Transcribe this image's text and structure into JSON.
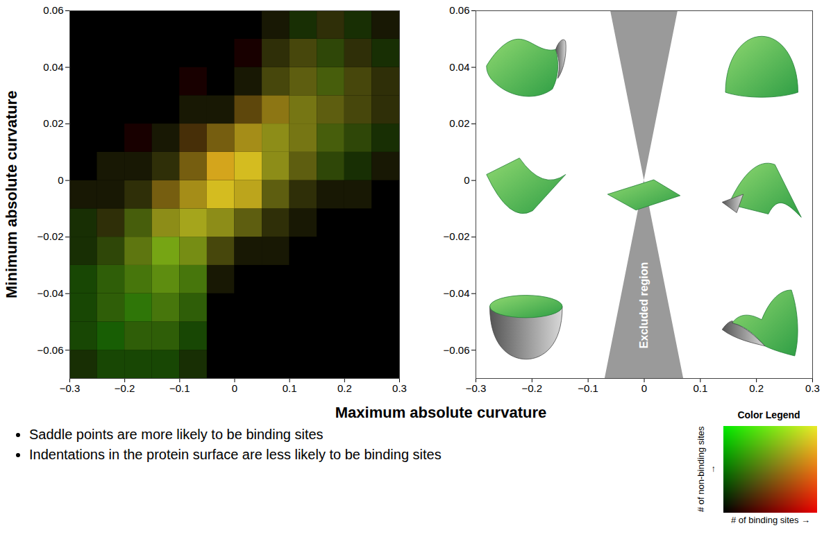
{
  "chart_data": [
    {
      "type": "heatmap",
      "xlim": [
        -0.3,
        0.3
      ],
      "ylim": [
        -0.07,
        0.06
      ],
      "xticks": [
        -0.3,
        -0.2,
        -0.1,
        0,
        0.1,
        0.2,
        0.3
      ],
      "yticks": [
        -0.06,
        -0.04,
        -0.02,
        0,
        0.02,
        0.04,
        0.06
      ],
      "x_edges": [
        -0.3,
        -0.25,
        -0.2,
        -0.15,
        -0.1,
        -0.05,
        0,
        0.05,
        0.1,
        0.15,
        0.2,
        0.25,
        0.3
      ],
      "y_edges": [
        -0.07,
        -0.06,
        -0.05,
        -0.04,
        -0.03,
        -0.02,
        -0.01,
        0,
        0.01,
        0.02,
        0.03,
        0.04,
        0.05,
        0.06
      ],
      "binding_sites": [
        [
          1,
          1,
          1,
          1,
          1,
          0,
          0,
          0,
          0,
          0,
          0,
          0
        ],
        [
          1,
          1,
          2,
          2,
          1,
          0,
          0,
          0,
          0,
          0,
          0,
          0
        ],
        [
          1,
          2,
          2,
          3,
          2,
          0,
          0,
          0,
          0,
          0,
          0,
          0
        ],
        [
          1,
          2,
          3,
          4,
          3,
          1,
          0,
          0,
          0,
          0,
          0,
          0
        ],
        [
          1,
          2,
          4,
          5,
          5,
          3,
          1,
          1,
          0,
          0,
          0,
          0
        ],
        [
          1,
          2,
          3,
          6,
          7,
          6,
          4,
          2,
          1,
          0,
          0,
          0
        ],
        [
          1,
          1,
          2,
          5,
          7,
          9,
          8,
          4,
          2,
          1,
          1,
          0
        ],
        [
          0,
          1,
          1,
          2,
          5,
          9,
          9,
          6,
          4,
          2,
          1,
          1
        ],
        [
          0,
          0,
          1,
          1,
          3,
          5,
          7,
          6,
          5,
          3,
          2,
          1
        ],
        [
          0,
          0,
          0,
          0,
          1,
          1,
          4,
          6,
          5,
          4,
          3,
          2
        ],
        [
          0,
          0,
          0,
          0,
          1,
          0,
          1,
          3,
          4,
          3,
          3,
          2
        ],
        [
          0,
          0,
          0,
          0,
          0,
          0,
          1,
          2,
          3,
          2,
          2,
          1
        ],
        [
          0,
          0,
          0,
          0,
          0,
          0,
          0,
          1,
          1,
          2,
          1,
          1
        ]
      ],
      "non_binding_sites": [
        [
          2,
          3,
          3,
          3,
          2,
          0,
          0,
          0,
          0,
          0,
          0,
          0
        ],
        [
          3,
          4,
          4,
          4,
          3,
          0,
          0,
          0,
          0,
          0,
          0,
          0
        ],
        [
          3,
          4,
          5,
          5,
          4,
          0,
          0,
          0,
          0,
          0,
          0,
          0
        ],
        [
          3,
          4,
          5,
          6,
          5,
          1,
          0,
          0,
          0,
          0,
          0,
          0
        ],
        [
          2,
          3,
          5,
          7,
          6,
          3,
          1,
          1,
          0,
          0,
          0,
          0
        ],
        [
          2,
          2,
          4,
          6,
          7,
          6,
          4,
          2,
          1,
          0,
          0,
          0
        ],
        [
          1,
          1,
          2,
          4,
          6,
          8,
          7,
          4,
          2,
          1,
          1,
          0
        ],
        [
          0,
          1,
          1,
          2,
          4,
          7,
          8,
          6,
          4,
          3,
          2,
          1
        ],
        [
          0,
          0,
          0,
          1,
          2,
          4,
          6,
          6,
          5,
          4,
          3,
          2
        ],
        [
          0,
          0,
          0,
          0,
          1,
          1,
          3,
          5,
          5,
          4,
          3,
          2
        ],
        [
          0,
          0,
          0,
          0,
          0,
          0,
          1,
          3,
          4,
          4,
          3,
          2
        ],
        [
          0,
          0,
          0,
          0,
          0,
          0,
          0,
          2,
          3,
          3,
          2,
          2
        ],
        [
          0,
          0,
          0,
          0,
          0,
          0,
          0,
          1,
          2,
          2,
          2,
          1
        ]
      ],
      "color_range": [
        0,
        10
      ]
    },
    {
      "type": "diagram",
      "xlim": [
        -0.3,
        0.3
      ],
      "ylim": [
        -0.07,
        0.06
      ],
      "xticks": [
        -0.3,
        -0.2,
        -0.1,
        0,
        0.1,
        0.2,
        0.3
      ],
      "yticks": [
        -0.06,
        -0.04,
        -0.02,
        0,
        0.02,
        0.04,
        0.06
      ],
      "excluded_region": {
        "label": "Excluded region",
        "boundary": [
          {
            "y": 0.06,
            "x1": -0.06,
            "x2": 0.06
          },
          {
            "y": 0,
            "x1": 0,
            "x2": 0
          },
          {
            "y": -0.07,
            "x1": -0.07,
            "x2": 0.07
          }
        ]
      }
    }
  ],
  "x_label": "Maximum absolute curvature",
  "y_label": "Minimum absolute curvature",
  "bullets": [
    "Saddle points are more likely to be binding sites",
    "Indentations in the protein surface are less likely to be binding sites"
  ],
  "color_legend": {
    "title": "Color Legend",
    "y_label": "# of non-binding sites →",
    "x_label": "# of binding sites →"
  }
}
